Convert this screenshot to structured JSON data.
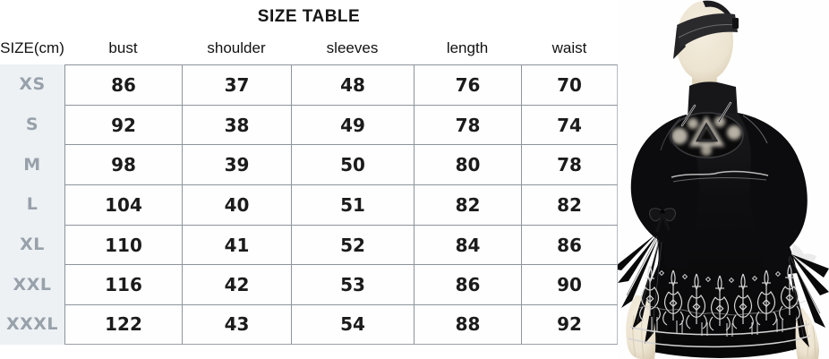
{
  "chart_data": {
    "type": "table",
    "title": "SIZE TABLE",
    "unit": "cm",
    "columns": [
      "SIZE(cm)",
      "bust",
      "shoulder",
      "sleeves",
      "length",
      "waist"
    ],
    "rows": [
      [
        "XS",
        86,
        37,
        48,
        76,
        70
      ],
      [
        "S",
        92,
        38,
        49,
        78,
        74
      ],
      [
        "M",
        98,
        39,
        50,
        80,
        78
      ],
      [
        "L",
        104,
        40,
        51,
        82,
        82
      ],
      [
        "XL",
        110,
        41,
        52,
        84,
        86
      ],
      [
        "XXL",
        116,
        42,
        53,
        86,
        90
      ],
      [
        "XXXL",
        122,
        43,
        54,
        88,
        92
      ]
    ]
  },
  "photo": {
    "description": "black high-collar cosplay dress with chest cutout emblem, puff sleeves, feather cuffs and white-embroidered flared skirt, shown on a blindfolded cream mannequin"
  },
  "colors": {
    "label_column_bg": "#edf1f4",
    "label_text": "#98a1aa",
    "table_border": "#8d949b",
    "number_text": "#1b1b1b",
    "dress_black": "#0e0e10",
    "embroidery_white": "#d6d6d6",
    "mannequin_skin": "#efe7d6"
  }
}
